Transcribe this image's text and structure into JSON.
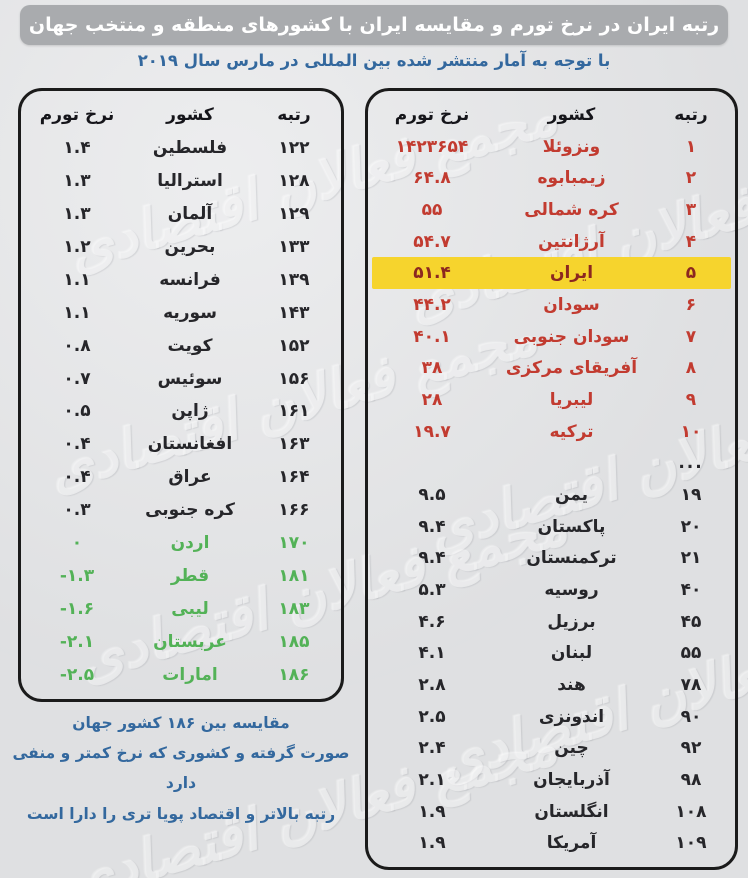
{
  "header": {
    "title": "رتبه ایران در نرخ تورم و مقایسه ایران با کشورهای منطقه و منتخب جهان",
    "subtitle": "با توجه به آمار منتشر شده بین المللی در مارس سال ۲۰۱۹"
  },
  "columns": {
    "rank": "رتبه",
    "country": "کشور",
    "rate": "نرخ تورم"
  },
  "tables": {
    "top": {
      "rows": [
        {
          "rank": "۱",
          "country": "ونزوئلا",
          "rate": "۱۴۲۳۶۵۴",
          "style": "red"
        },
        {
          "rank": "۲",
          "country": "زیمبابوه",
          "rate": "۶۴.۸",
          "style": "red"
        },
        {
          "rank": "۳",
          "country": "کره شمالی",
          "rate": "۵۵",
          "style": "red"
        },
        {
          "rank": "۴",
          "country": "آرژانتین",
          "rate": "۵۴.۷",
          "style": "red"
        },
        {
          "rank": "۵",
          "country": "ایران",
          "rate": "۵۱.۴",
          "style": "red",
          "highlight": true
        },
        {
          "rank": "۶",
          "country": "سودان",
          "rate": "۴۴.۲",
          "style": "red"
        },
        {
          "rank": "۷",
          "country": "سودان جنوبی",
          "rate": "۴۰.۱",
          "style": "red"
        },
        {
          "rank": "۸",
          "country": "آفریقای مرکزی",
          "rate": "۳۸",
          "style": "red"
        },
        {
          "rank": "۹",
          "country": "لیبریا",
          "rate": "۲۸",
          "style": "red"
        },
        {
          "rank": "۱۰",
          "country": "ترکیه",
          "rate": "۱۹.۷",
          "style": "red"
        },
        {
          "rank": "...",
          "country": "",
          "rate": "",
          "style": "ellipsis"
        },
        {
          "rank": "۱۹",
          "country": "یمن",
          "rate": "۹.۵",
          "style": "black"
        },
        {
          "rank": "۲۰",
          "country": "پاکستان",
          "rate": "۹.۴",
          "style": "black"
        },
        {
          "rank": "۲۱",
          "country": "ترکمنستان",
          "rate": "۹.۴",
          "style": "black"
        },
        {
          "rank": "۴۰",
          "country": "روسیه",
          "rate": "۵.۳",
          "style": "black"
        },
        {
          "rank": "۴۵",
          "country": "برزیل",
          "rate": "۴.۶",
          "style": "black"
        },
        {
          "rank": "۵۵",
          "country": "لبنان",
          "rate": "۴.۱",
          "style": "black"
        },
        {
          "rank": "۷۸",
          "country": "هند",
          "rate": "۲.۸",
          "style": "black"
        },
        {
          "rank": "۹۰",
          "country": "اندونزی",
          "rate": "۲.۵",
          "style": "black"
        },
        {
          "rank": "۹۲",
          "country": "چین",
          "rate": "۲.۴",
          "style": "black"
        },
        {
          "rank": "۹۸",
          "country": "آذربایجان",
          "rate": "۲.۱",
          "style": "black"
        },
        {
          "rank": "۱۰۸",
          "country": "انگلستان",
          "rate": "۱.۹",
          "style": "black"
        },
        {
          "rank": "۱۰۹",
          "country": "آمریکا",
          "rate": "۱.۹",
          "style": "black"
        }
      ]
    },
    "bottom": {
      "rows": [
        {
          "rank": "۱۲۲",
          "country": "فلسطین",
          "rate": "۱.۴",
          "style": "black"
        },
        {
          "rank": "۱۲۸",
          "country": "استرالیا",
          "rate": "۱.۳",
          "style": "black"
        },
        {
          "rank": "۱۲۹",
          "country": "آلمان",
          "rate": "۱.۳",
          "style": "black"
        },
        {
          "rank": "۱۳۳",
          "country": "بحرین",
          "rate": "۱.۲",
          "style": "black"
        },
        {
          "rank": "۱۳۹",
          "country": "فرانسه",
          "rate": "۱.۱",
          "style": "black"
        },
        {
          "rank": "۱۴۳",
          "country": "سوریه",
          "rate": "۱.۱",
          "style": "black"
        },
        {
          "rank": "۱۵۲",
          "country": "کویت",
          "rate": "۰.۸",
          "style": "black"
        },
        {
          "rank": "۱۵۶",
          "country": "سوئیس",
          "rate": "۰.۷",
          "style": "black"
        },
        {
          "rank": "۱۶۱",
          "country": "ژاپن",
          "rate": "۰.۵",
          "style": "black"
        },
        {
          "rank": "۱۶۳",
          "country": "افغانستان",
          "rate": "۰.۴",
          "style": "black"
        },
        {
          "rank": "۱۶۴",
          "country": "عراق",
          "rate": "۰.۴",
          "style": "black"
        },
        {
          "rank": "۱۶۶",
          "country": "کره جنوبی",
          "rate": "۰.۳",
          "style": "black"
        },
        {
          "rank": "۱۷۰",
          "country": "اردن",
          "rate": "۰",
          "style": "green"
        },
        {
          "rank": "۱۸۱",
          "country": "قطر",
          "rate": "-۱.۳",
          "style": "green"
        },
        {
          "rank": "۱۸۳",
          "country": "لیبی",
          "rate": "-۱.۶",
          "style": "green"
        },
        {
          "rank": "۱۸۵",
          "country": "عربستان",
          "rate": "-۲.۱",
          "style": "green"
        },
        {
          "rank": "۱۸۶",
          "country": "امارات",
          "rate": "-۲.۵",
          "style": "green"
        }
      ]
    }
  },
  "footer": {
    "lines": [
      "مقایسه بین ۱۸۶ کشور جهان",
      "صورت گرفته و کشوری که نرخ کمتر و منفی دارد",
      "رتبه بالاتر و اقتصاد پویا تری را دارا است"
    ]
  },
  "watermark": {
    "text": "مجمع فعالان اقتصادی"
  },
  "colors": {
    "red_text": "#c23b30",
    "green_text": "#53b257",
    "highlight_yellow": "#f6d42d",
    "header_gray": "#a9abae",
    "blue_text": "#33689e",
    "background": "#e3e4e6"
  },
  "chart_data": [
    {
      "type": "table",
      "title": "رتبه ایران در نرخ تورم و مقایسه ایران با کشورهای منطقه و منتخب جهان — رتبه‌های ۱ تا ۱۰۹",
      "columns": [
        "رتبه",
        "کشور",
        "نرخ تورم"
      ],
      "rows": [
        [
          1,
          "ونزوئلا",
          1423654
        ],
        [
          2,
          "زیمبابوه",
          64.8
        ],
        [
          3,
          "کره شمالی",
          55
        ],
        [
          4,
          "آرژانتین",
          54.7
        ],
        [
          5,
          "ایران",
          51.4
        ],
        [
          6,
          "سودان",
          44.2
        ],
        [
          7,
          "سودان جنوبی",
          40.1
        ],
        [
          8,
          "آفریقای مرکزی",
          38
        ],
        [
          9,
          "لیبریا",
          28
        ],
        [
          10,
          "ترکیه",
          19.7
        ],
        [
          19,
          "یمن",
          9.5
        ],
        [
          20,
          "پاکستان",
          9.4
        ],
        [
          21,
          "ترکمنستان",
          9.4
        ],
        [
          40,
          "روسیه",
          5.3
        ],
        [
          45,
          "برزیل",
          4.6
        ],
        [
          55,
          "لبنان",
          4.1
        ],
        [
          78,
          "هند",
          2.8
        ],
        [
          90,
          "اندونزی",
          2.5
        ],
        [
          92,
          "چین",
          2.4
        ],
        [
          98,
          "آذربایجان",
          2.1
        ],
        [
          108,
          "انگلستان",
          1.9
        ],
        [
          109,
          "آمریکا",
          1.9
        ]
      ],
      "highlighted_row": [
        5,
        "ایران",
        51.4
      ]
    },
    {
      "type": "table",
      "title": "رتبه‌های ۱۲۲ تا ۱۸۶",
      "columns": [
        "رتبه",
        "کشور",
        "نرخ تورم"
      ],
      "rows": [
        [
          122,
          "فلسطین",
          1.4
        ],
        [
          128,
          "استرالیا",
          1.3
        ],
        [
          129,
          "آلمان",
          1.3
        ],
        [
          133,
          "بحرین",
          1.2
        ],
        [
          139,
          "فرانسه",
          1.1
        ],
        [
          143,
          "سوریه",
          1.1
        ],
        [
          152,
          "کویت",
          0.8
        ],
        [
          156,
          "سوئیس",
          0.7
        ],
        [
          161,
          "ژاپن",
          0.5
        ],
        [
          163,
          "افغانستان",
          0.4
        ],
        [
          164,
          "عراق",
          0.4
        ],
        [
          166,
          "کره جنوبی",
          0.3
        ],
        [
          170,
          "اردن",
          0
        ],
        [
          181,
          "قطر",
          -1.3
        ],
        [
          183,
          "لیبی",
          -1.6
        ],
        [
          185,
          "عربستان",
          -2.1
        ],
        [
          186,
          "امارات",
          -2.5
        ]
      ]
    }
  ]
}
